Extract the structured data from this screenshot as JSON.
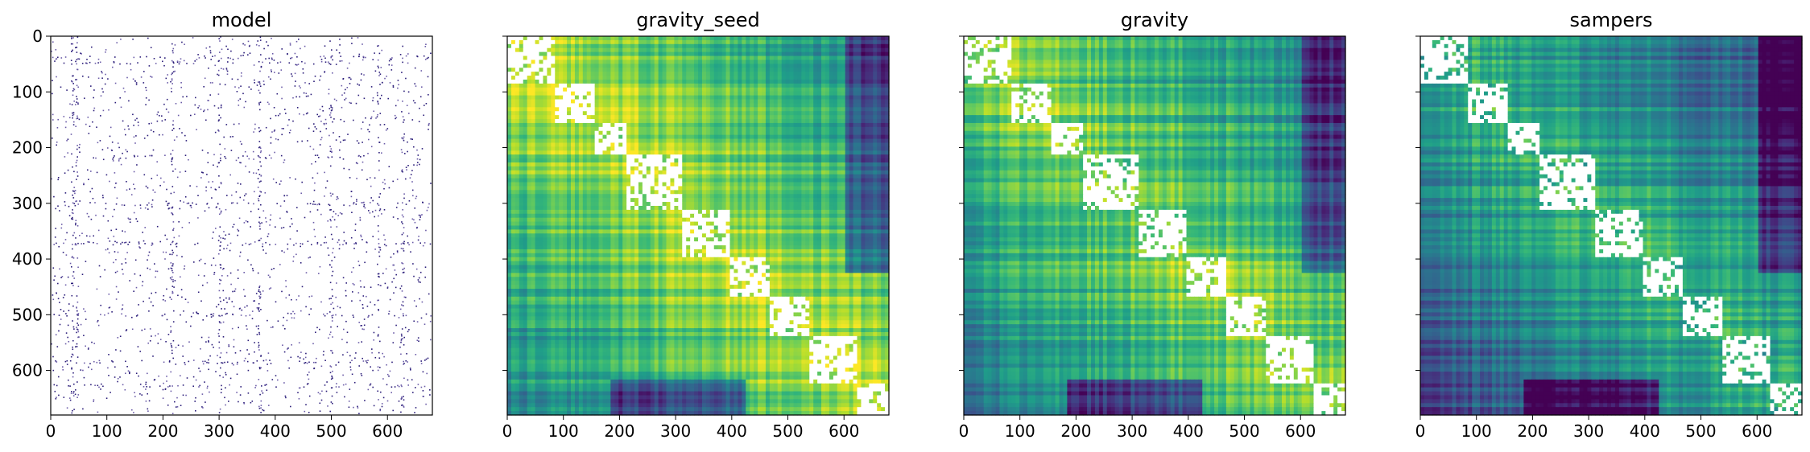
{
  "chart_data": [
    {
      "type": "heatmap",
      "title": "model",
      "xlim": [
        0,
        680
      ],
      "ylim": [
        680,
        0
      ],
      "xticks": [
        0,
        100,
        200,
        300,
        400,
        500,
        600
      ],
      "yticks": [
        0,
        100,
        200,
        300,
        400,
        500,
        600
      ],
      "show_xtick_labels": true,
      "show_ytick_labels": true,
      "style": "sparse",
      "colormap": "purples",
      "colors": {
        "high": "#2c1e7a",
        "mid": "#6b5ca8"
      },
      "grid": false,
      "legend": "none"
    },
    {
      "type": "heatmap",
      "title": "gravity_seed",
      "xlim": [
        0,
        680
      ],
      "ylim": [
        680,
        0
      ],
      "xticks": [
        0,
        100,
        200,
        300,
        400,
        500,
        600
      ],
      "yticks": [
        0,
        100,
        200,
        300,
        400,
        500,
        600
      ],
      "show_xtick_labels": true,
      "show_ytick_labels": false,
      "style": "dense",
      "colormap": "viridis",
      "colors": {
        "low": "#3b3f8c",
        "mid": "#2aa17f",
        "high": "#e5e419"
      },
      "grid": false,
      "legend": "none"
    },
    {
      "type": "heatmap",
      "title": "gravity",
      "xlim": [
        0,
        680
      ],
      "ylim": [
        680,
        0
      ],
      "xticks": [
        0,
        100,
        200,
        300,
        400,
        500,
        600
      ],
      "yticks": [
        0,
        100,
        200,
        300,
        400,
        500,
        600
      ],
      "show_xtick_labels": true,
      "show_ytick_labels": false,
      "style": "dense",
      "colormap": "viridis",
      "colors": {
        "low": "#2f6f8e",
        "mid": "#35b779",
        "high": "#d8e219"
      },
      "grid": false,
      "legend": "none"
    },
    {
      "type": "heatmap",
      "title": "sampers",
      "xlim": [
        0,
        680
      ],
      "ylim": [
        680,
        0
      ],
      "xticks": [
        0,
        100,
        200,
        300,
        400,
        500,
        600
      ],
      "yticks": [
        0,
        100,
        200,
        300,
        400,
        500,
        600
      ],
      "show_xtick_labels": true,
      "show_ytick_labels": false,
      "style": "dense",
      "colormap": "viridis",
      "colors": {
        "low": "#31688e",
        "mid": "#218f8d",
        "high": "#7ad151"
      },
      "grid": false,
      "legend": "none"
    }
  ]
}
